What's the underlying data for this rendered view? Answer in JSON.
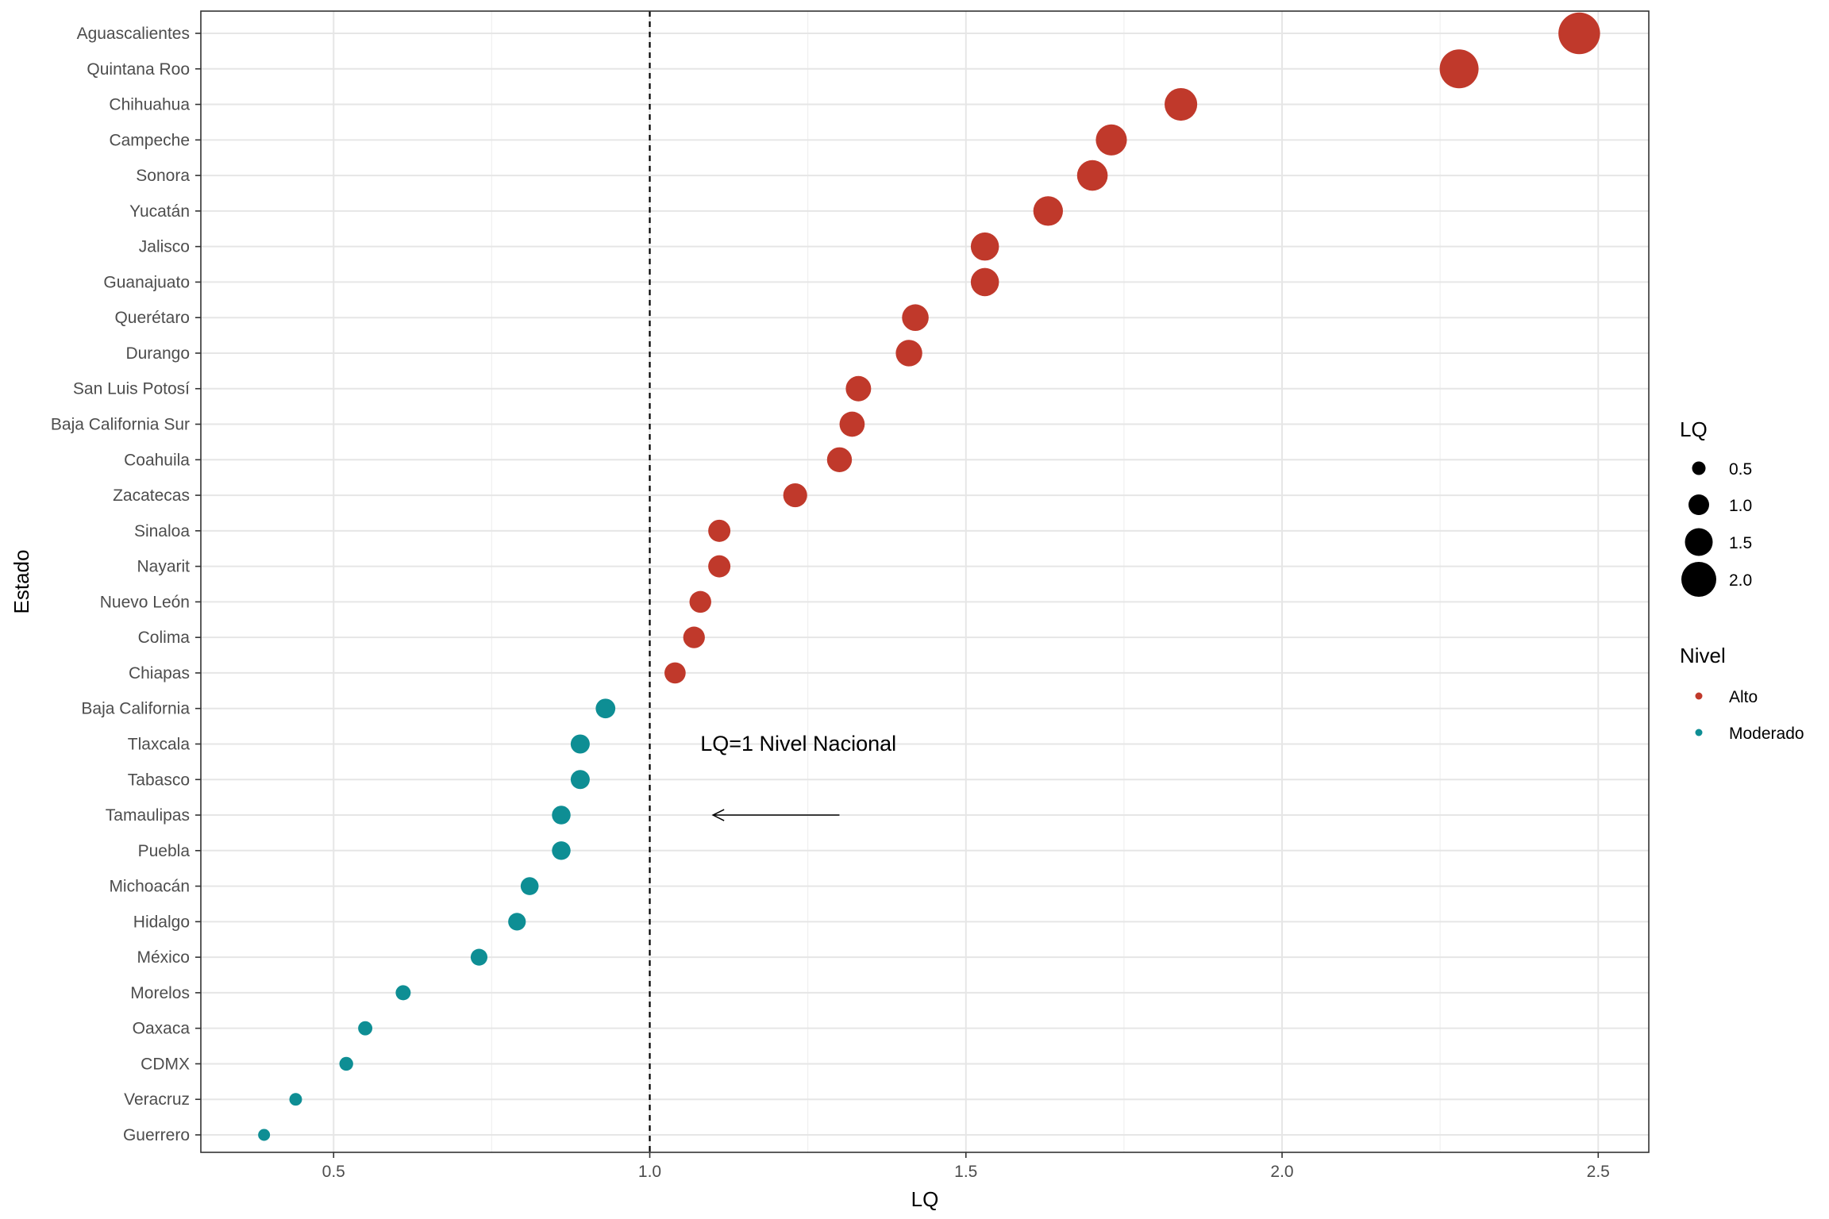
{
  "chart_data": {
    "type": "scatter",
    "xlabel": "LQ",
    "ylabel": "Estado",
    "xlim": [
      0.29,
      2.58
    ],
    "xticks": [
      0.5,
      1.0,
      1.5,
      2.0,
      2.5
    ],
    "xtick_labels": [
      "0.5",
      "1.0",
      "1.5",
      "2.0",
      "2.5"
    ],
    "grid": true,
    "reference_line": {
      "x": 1.0,
      "style": "dashed"
    },
    "annotation": {
      "text": "LQ=1 Nivel Nacional",
      "arrow_from": [
        1.3,
        "Tamaulipas"
      ],
      "arrow_to": [
        1.1,
        "Tamaulipas"
      ]
    },
    "categories": [
      "Aguascalientes",
      "Quintana Roo",
      "Chihuahua",
      "Campeche",
      "Sonora",
      "Yucatán",
      "Jalisco",
      "Guanajuato",
      "Querétaro",
      "Durango",
      "San Luis Potosí",
      "Baja California Sur",
      "Coahuila",
      "Zacatecas",
      "Sinaloa",
      "Nayarit",
      "Nuevo León",
      "Colima",
      "Chiapas",
      "Baja California",
      "Tlaxcala",
      "Tabasco",
      "Tamaulipas",
      "Puebla",
      "Michoacán",
      "Hidalgo",
      "México",
      "Morelos",
      "Oaxaca",
      "CDMX",
      "Veracruz",
      "Guerrero"
    ],
    "values": [
      2.47,
      2.28,
      1.84,
      1.73,
      1.7,
      1.63,
      1.53,
      1.53,
      1.42,
      1.41,
      1.33,
      1.32,
      1.3,
      1.23,
      1.11,
      1.11,
      1.08,
      1.07,
      1.04,
      0.93,
      0.89,
      0.89,
      0.86,
      0.86,
      0.81,
      0.79,
      0.73,
      0.61,
      0.55,
      0.52,
      0.44,
      0.39
    ],
    "nivel": [
      "Alto",
      "Alto",
      "Alto",
      "Alto",
      "Alto",
      "Alto",
      "Alto",
      "Alto",
      "Alto",
      "Alto",
      "Alto",
      "Alto",
      "Alto",
      "Alto",
      "Alto",
      "Alto",
      "Alto",
      "Alto",
      "Alto",
      "Moderado",
      "Moderado",
      "Moderado",
      "Moderado",
      "Moderado",
      "Moderado",
      "Moderado",
      "Moderado",
      "Moderado",
      "Moderado",
      "Moderado",
      "Moderado",
      "Moderado"
    ],
    "legend_size": {
      "title": "LQ",
      "values": [
        0.5,
        1.0,
        1.5,
        2.0
      ],
      "labels": [
        "0.5",
        "1.0",
        "1.5",
        "2.0"
      ]
    },
    "legend_color": {
      "title": "Nivel",
      "items": [
        {
          "label": "Alto",
          "color": "#c0392b"
        },
        {
          "label": "Moderado",
          "color": "#0e8e94"
        }
      ]
    },
    "legend_placement": "right"
  }
}
